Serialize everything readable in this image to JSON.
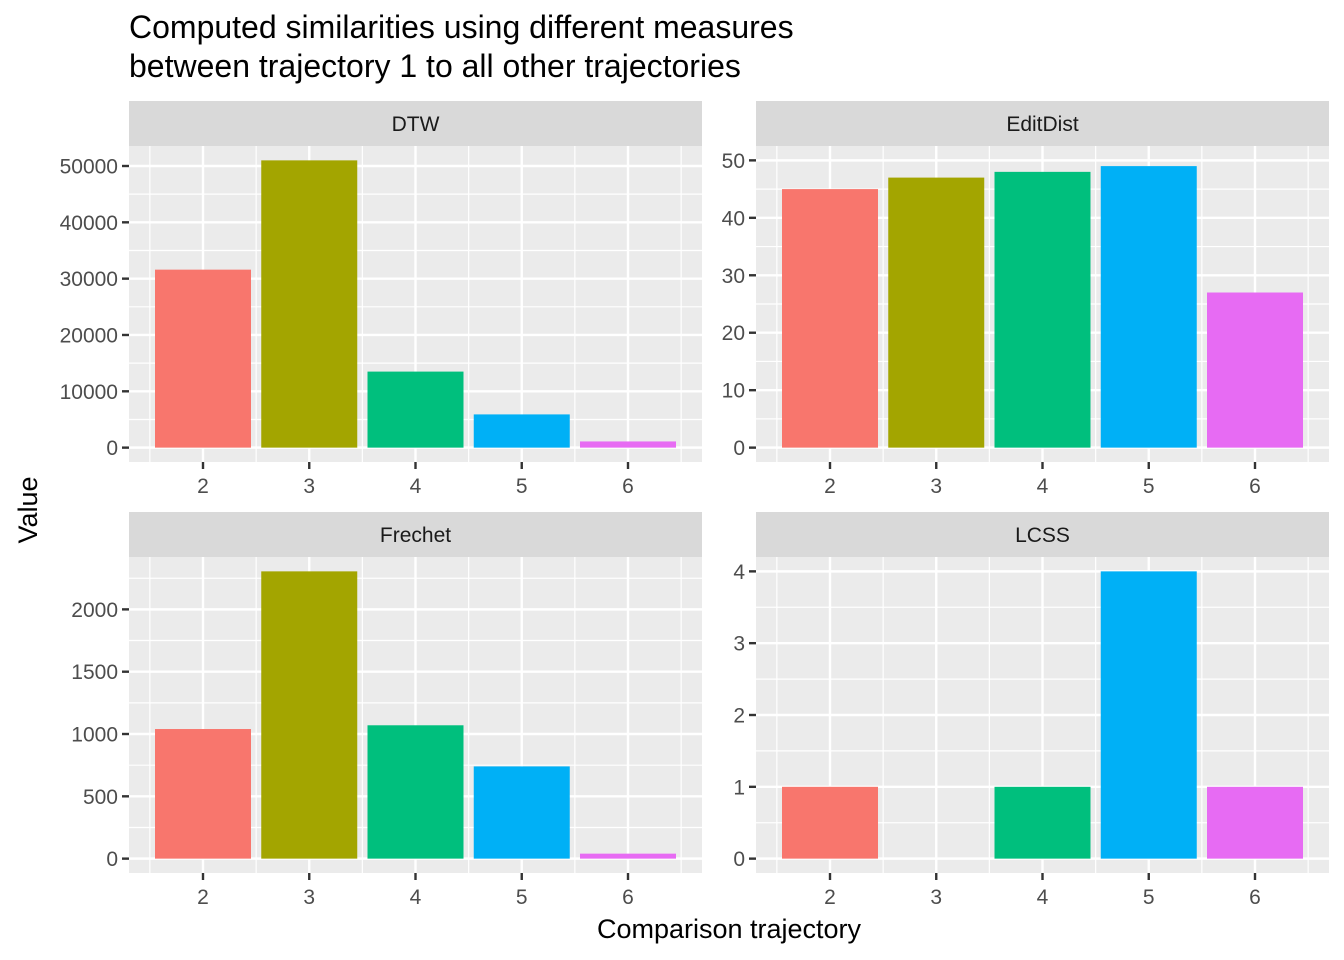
{
  "chart_data": {
    "type": "bar",
    "title": "Computed similarities using different measures\nbetween trajectory 1 to all other trajectories",
    "title_lines": [
      "Computed similarities using different measures",
      "between trajectory 1 to all other trajectories"
    ],
    "xlabel": "Comparison trajectory",
    "ylabel": "Value",
    "categories": [
      "2",
      "3",
      "4",
      "5",
      "6"
    ],
    "category_colors": [
      "#F8766D",
      "#A3A500",
      "#00BF7D",
      "#00B0F6",
      "#E76BF3"
    ],
    "grid": true,
    "legend": "none",
    "facets": [
      {
        "name": "DTW",
        "values": [
          31600,
          51000,
          13500,
          5900,
          1100
        ],
        "yticks": [
          0,
          10000,
          20000,
          30000,
          40000,
          50000
        ],
        "ylim": [
          0,
          51000
        ]
      },
      {
        "name": "EditDist",
        "values": [
          45,
          47,
          48,
          49,
          27
        ],
        "yticks": [
          0,
          10,
          20,
          30,
          40,
          50
        ],
        "ylim": [
          0,
          50
        ]
      },
      {
        "name": "Frechet",
        "values": [
          1040,
          2305,
          1070,
          740,
          40
        ],
        "yticks": [
          0,
          500,
          1000,
          1500,
          2000
        ],
        "ylim": [
          0,
          2305
        ]
      },
      {
        "name": "LCSS",
        "values": [
          1,
          0,
          1,
          4,
          1
        ],
        "yticks": [
          0,
          1,
          2,
          3,
          4
        ],
        "ylim": [
          0,
          4
        ]
      }
    ]
  }
}
